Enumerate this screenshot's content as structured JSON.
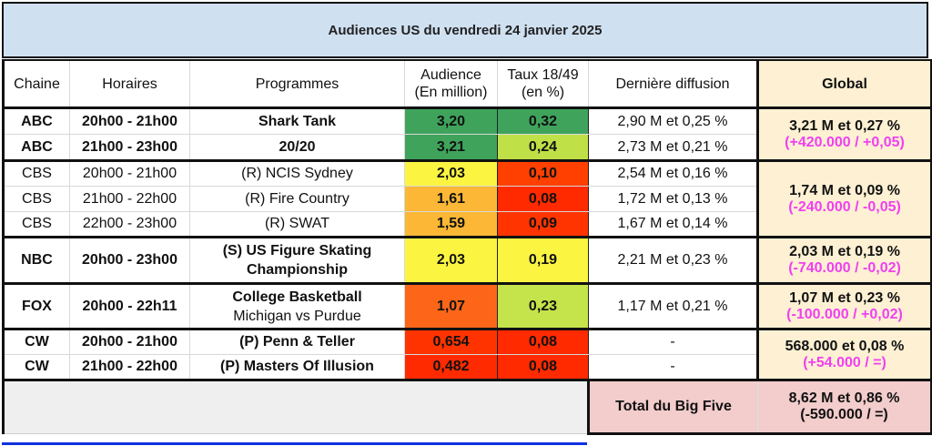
{
  "title": "Audiences US du vendredi 24 janvier 2025",
  "headers": {
    "chaine": "Chaine",
    "horaires": "Horaires",
    "programmes": "Programmes",
    "audience_l1": "Audience",
    "audience_l2": "(En million)",
    "taux_l1": "Taux 18/49",
    "taux_l2": "(en %)",
    "derniere": "Dernière diffusion",
    "global": "Global"
  },
  "rows": [
    {
      "chaine": "ABC",
      "horaires": "20h00 - 21h00",
      "programme": "Shark Tank",
      "audience": "3,20",
      "taux": "0,32",
      "derniere": "2,90 M et 0,25 %",
      "audience_color": "#3fa35c",
      "taux_color": "#3fa35c"
    },
    {
      "chaine": "ABC",
      "horaires": "21h00 - 23h00",
      "programme": "20/20",
      "audience": "3,21",
      "taux": "0,24",
      "derniere": "2,73 M et 0,21 %",
      "audience_color": "#3fa35c",
      "taux_color": "#bfe047"
    },
    {
      "chaine": "CBS",
      "horaires": "20h00 - 21h00",
      "programme": "(R) NCIS Sydney",
      "audience": "2,03",
      "taux": "0,10",
      "derniere": "2,54 M et 0,16 %",
      "audience_color": "#fbf542",
      "taux_color": "#ff4000"
    },
    {
      "chaine": "CBS",
      "horaires": "21h00 - 22h00",
      "programme": "(R) Fire Country",
      "audience": "1,61",
      "taux": "0,08",
      "derniere": "1,72 M et 0,13 %",
      "audience_color": "#fbb735",
      "taux_color": "#ff2a00"
    },
    {
      "chaine": "CBS",
      "horaires": "22h00 - 23h00",
      "programme": "(R) SWAT",
      "audience": "1,59",
      "taux": "0,09",
      "derniere": "1,67 M et 0,14 %",
      "audience_color": "#fbb735",
      "taux_color": "#ff3400"
    },
    {
      "chaine": "NBC",
      "horaires": "20h00 - 23h00",
      "programme_l1": "(S) US Figure Skating",
      "programme_l2": "Championship",
      "audience": "2,03",
      "taux": "0,19",
      "derniere": "2,21 M et 0,23 %",
      "audience_color": "#fbf542",
      "taux_color": "#fbf542"
    },
    {
      "chaine": "FOX",
      "horaires": "20h00 - 22h11",
      "programme_l1": "College Basketball",
      "programme_l2": "Michigan vs Purdue",
      "audience": "1,07",
      "taux": "0,23",
      "derniere": "1,17 M et 0,21 %",
      "audience_color": "#fd6618",
      "taux_color": "#c5e34a"
    },
    {
      "chaine": "CW",
      "horaires": "20h00 - 21h00",
      "programme": "(P) Penn & Teller",
      "audience": "0,654",
      "taux": "0,08",
      "derniere": "-",
      "audience_color": "#ff3300",
      "taux_color": "#ff2a00"
    },
    {
      "chaine": "CW",
      "horaires": "21h00 - 22h00",
      "programme": "(P) Masters Of Illusion",
      "audience": "0,482",
      "taux": "0,08",
      "derniere": "-",
      "audience_color": "#ff2a00",
      "taux_color": "#ff2a00"
    }
  ],
  "global": {
    "abc": {
      "main": "3,21 M et 0,27 %",
      "diff": "(+420.000 / +0,05)"
    },
    "cbs": {
      "main": "1,74 M et 0,09 %",
      "diff": "(-240.000 / -0,05)"
    },
    "nbc": {
      "main": "2,03 M et 0,19 %",
      "diff": "(-740.000 / -0,02)"
    },
    "fox": {
      "main": "1,07 M et 0,23 %",
      "diff": "(-100.000 / +0,02)"
    },
    "cw": {
      "main": "568.000 et 0,08 %",
      "diff": "(+54.000 / =)"
    }
  },
  "total": {
    "label": "Total du Big Five",
    "main": "8,62 M et 0,86 %",
    "diff": "(-590.000 / =)"
  },
  "colors": {
    "title_bg": "#cfe0f1",
    "global_bg": "#fdf0d3",
    "global_text": "#f02a1c",
    "diff_text": "#f040f0",
    "total_bg": "#f3cccc"
  }
}
